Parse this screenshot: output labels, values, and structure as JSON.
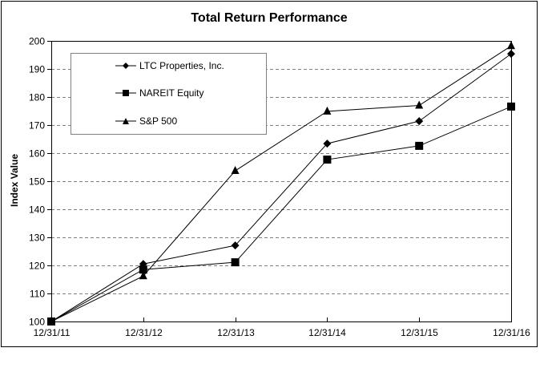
{
  "chart_data": {
    "type": "line",
    "title": "Total Return Performance",
    "xlabel": "",
    "ylabel": "Index Value",
    "categories": [
      "12/31/11",
      "12/31/12",
      "12/31/13",
      "12/31/14",
      "12/31/15",
      "12/31/16"
    ],
    "ylim": [
      100,
      200
    ],
    "yticks": [
      100,
      110,
      120,
      130,
      140,
      150,
      160,
      170,
      180,
      190,
      200
    ],
    "grid": "horizontal dashed",
    "legend_position": "upper left, inside plot",
    "series": [
      {
        "name": "LTC Properties, Inc.",
        "marker": "diamond",
        "values": [
          100,
          120.5,
          127.1,
          163.4,
          171.4,
          195.4
        ]
      },
      {
        "name": "NAREIT Equity",
        "marker": "square",
        "values": [
          100,
          118.5,
          121.1,
          157.7,
          162.6,
          176.6
        ]
      },
      {
        "name": "S&P 500",
        "marker": "triangle",
        "values": [
          100,
          116.2,
          153.7,
          174.9,
          177.0,
          198.2
        ]
      }
    ]
  }
}
